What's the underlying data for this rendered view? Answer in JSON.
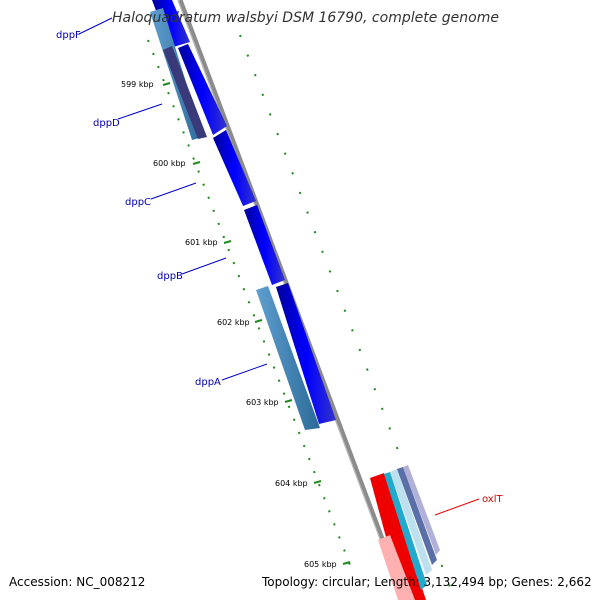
{
  "title": "Haloquadratum walsbyi DSM 16790, complete genome",
  "accession": "Accession: NC_008212",
  "summary": "Topology: circular; Length: 3,132,494 bp; Genes: 2,662",
  "ticks": [
    "599 kbp",
    "600 kbp",
    "601 kbp",
    "602 kbp",
    "603 kbp",
    "604 kbp",
    "605 kbp"
  ],
  "genes": [
    "dppF",
    "dppD",
    "dppC",
    "dppB",
    "dppA",
    "oxlT"
  ],
  "colors": {
    "backbone": "#8c8c8c",
    "forward_gene": "#0000ee",
    "reverse_gene": "#4a86b4",
    "dark_gene": "#3a3a7a",
    "oxlt": "#ee0000",
    "tick_mark": "#1f8a1f",
    "label_line": "#0000cc"
  }
}
